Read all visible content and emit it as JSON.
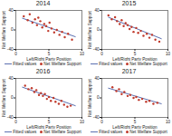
{
  "chart_data": [
    {
      "type": "scatter",
      "title": "2014",
      "x_label": "Left/Right Party Position",
      "y_label": "Net Welfare Support",
      "xlim": [
        0,
        10
      ],
      "xticks": [
        0,
        5,
        10
      ],
      "ylim": [
        -40,
        40
      ],
      "yticks": [
        -40,
        0,
        40
      ],
      "legend": "bottom",
      "series": [
        {
          "name": "Fitted values",
          "type": "line",
          "color": "#5b6fb0",
          "x": [
            1,
            9
          ],
          "values": [
            24,
            -14
          ]
        },
        {
          "name": "Net Welfare Support",
          "type": "scatter",
          "color": "#c0392b",
          "x": [
            1.2,
            1.8,
            2.1,
            2.5,
            2.9,
            3.2,
            3.4,
            3.7,
            4.0,
            4.3,
            4.6,
            4.9,
            5.1,
            5.4,
            5.8,
            6.2,
            6.6,
            7.0,
            7.4,
            7.9,
            8.5
          ],
          "values": [
            28,
            20,
            32,
            15,
            22,
            10,
            25,
            18,
            5,
            12,
            8,
            -2,
            15,
            3,
            -5,
            0,
            -10,
            -4,
            -15,
            -8,
            -20
          ]
        }
      ]
    },
    {
      "type": "scatter",
      "title": "2015",
      "x_label": "Left/Right Party Position",
      "y_label": "Net Welfare Support",
      "xlim": [
        0,
        10
      ],
      "xticks": [
        0,
        5,
        10
      ],
      "ylim": [
        -40,
        40
      ],
      "yticks": [
        -40,
        0,
        40
      ],
      "legend": "bottom",
      "series": [
        {
          "name": "Fitted values",
          "type": "line",
          "color": "#5b6fb0",
          "x": [
            1,
            9
          ],
          "values": [
            26,
            -18
          ]
        },
        {
          "name": "Net Welfare Support",
          "type": "scatter",
          "color": "#c0392b",
          "x": [
            1.0,
            1.5,
            2.0,
            2.3,
            2.7,
            3.0,
            3.3,
            3.6,
            3.9,
            4.2,
            4.5,
            4.8,
            5.2,
            5.5,
            5.9,
            6.3,
            6.8,
            7.2,
            7.6,
            8.1,
            8.7
          ],
          "values": [
            30,
            22,
            26,
            18,
            12,
            20,
            8,
            14,
            10,
            2,
            6,
            -4,
            4,
            -6,
            -2,
            -12,
            -8,
            -16,
            -10,
            -20,
            -24
          ]
        }
      ]
    },
    {
      "type": "scatter",
      "title": "2016",
      "x_label": "Left/Right Party Position",
      "y_label": "Net Welfare Support",
      "xlim": [
        0,
        10
      ],
      "xticks": [
        0,
        5,
        10
      ],
      "ylim": [
        -40,
        40
      ],
      "yticks": [
        -40,
        0,
        40
      ],
      "legend": "bottom",
      "series": [
        {
          "name": "Fitted values",
          "type": "line",
          "color": "#5b6fb0",
          "x": [
            1,
            9
          ],
          "values": [
            22,
            -16
          ]
        },
        {
          "name": "Net Welfare Support",
          "type": "scatter",
          "color": "#c0392b",
          "x": [
            1.4,
            1.9,
            2.4,
            2.8,
            3.1,
            3.5,
            3.8,
            4.1,
            4.4,
            4.7,
            5.0,
            5.3,
            5.7,
            6.0,
            6.5,
            6.9,
            7.3,
            7.8,
            8.3
          ],
          "values": [
            25,
            18,
            20,
            12,
            16,
            6,
            10,
            4,
            8,
            -2,
            2,
            -6,
            0,
            -8,
            -12,
            -6,
            -14,
            -18,
            -16
          ]
        }
      ]
    },
    {
      "type": "scatter",
      "title": "2017",
      "x_label": "Left/Right Party Position",
      "y_label": "Net Welfare Support",
      "xlim": [
        0,
        10
      ],
      "xticks": [
        0,
        5,
        10
      ],
      "ylim": [
        -40,
        40
      ],
      "yticks": [
        -40,
        0,
        40
      ],
      "legend": "bottom",
      "series": [
        {
          "name": "Fitted values",
          "type": "line",
          "color": "#5b6fb0",
          "x": [
            1,
            9
          ],
          "values": [
            20,
            -12
          ]
        },
        {
          "name": "Net Welfare Support",
          "type": "scatter",
          "color": "#c0392b",
          "x": [
            1.6,
            2.2,
            2.6,
            3.0,
            3.4,
            3.9,
            4.3,
            4.8,
            5.2,
            5.6,
            6.1,
            6.7,
            7.2,
            7.8,
            8.4
          ],
          "values": [
            22,
            14,
            18,
            8,
            12,
            4,
            6,
            0,
            2,
            -4,
            -2,
            -8,
            -6,
            -12,
            -10
          ]
        }
      ]
    }
  ]
}
